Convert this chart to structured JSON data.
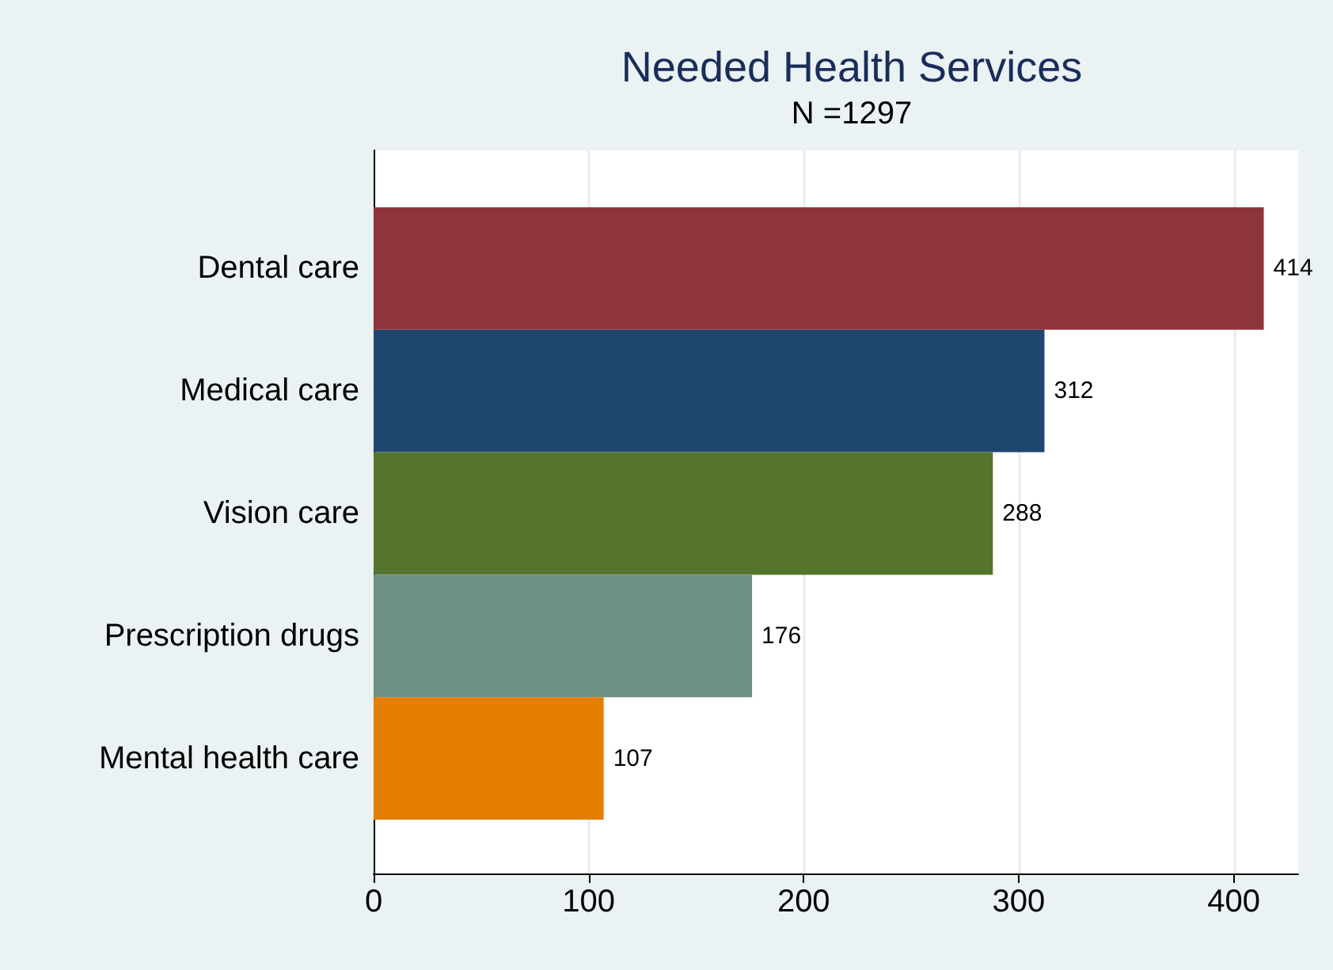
{
  "chart_data": {
    "type": "bar",
    "orientation": "horizontal",
    "title": "Needed Health Services",
    "subtitle": "N =1297",
    "categories": [
      "Dental care",
      "Medical care",
      "Vision care",
      "Prescription drugs",
      "Mental health care"
    ],
    "values": [
      414,
      312,
      288,
      176,
      107
    ],
    "colors": [
      "#8e353c",
      "#1e466e",
      "#55752f",
      "#6e8f83",
      "#e37e00"
    ],
    "xlim": [
      0,
      430
    ],
    "xticks": [
      0,
      100,
      200,
      300,
      400
    ],
    "grid": "x",
    "data_labels": true
  }
}
